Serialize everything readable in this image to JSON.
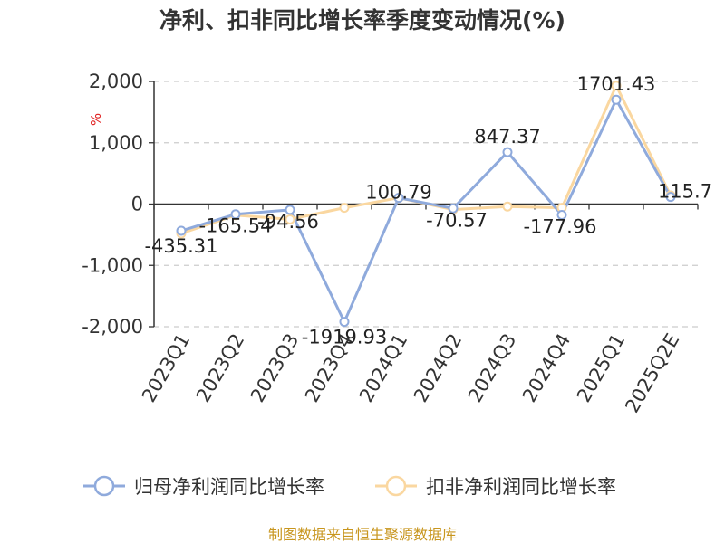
{
  "chart_data": {
    "type": "line",
    "title": "净利、扣非同比增长率季度变动情况(%)",
    "ylabel": "%",
    "ylim": [
      -2000,
      2000
    ],
    "yticks": [
      2000,
      1000,
      0,
      -1000,
      -2000
    ],
    "ytick_labels": [
      "2,000",
      "1,000",
      "0",
      "-1,000",
      "-2,000"
    ],
    "grid": true,
    "legend_position": "bottom",
    "categories": [
      "2023Q1",
      "2023Q2",
      "2023Q3",
      "2023Q4",
      "2024Q1",
      "2024Q2",
      "2024Q3",
      "2024Q4",
      "2025Q1",
      "2025Q2E"
    ],
    "series": [
      {
        "name": "归母净利润同比增长率",
        "color": "#8faadc",
        "values": [
          -435.31,
          -165.54,
          -94.56,
          -1919.93,
          100.79,
          -70.57,
          847.37,
          -177.96,
          1701.43,
          115.7
        ],
        "labels": [
          "-435.31",
          "-165.54",
          "-94.56",
          "-1919.93",
          "100.79",
          "-70.57",
          "847.37",
          "-177.96",
          "1701.43",
          "115.7"
        ]
      },
      {
        "name": "扣非净利润同比增长率",
        "color": "#fad7a0",
        "values": [
          -480,
          -180,
          -250,
          -60,
          100,
          -90,
          -40,
          -60,
          1930,
          140
        ]
      }
    ]
  },
  "source": "制图数据来自恒生聚源数据库"
}
